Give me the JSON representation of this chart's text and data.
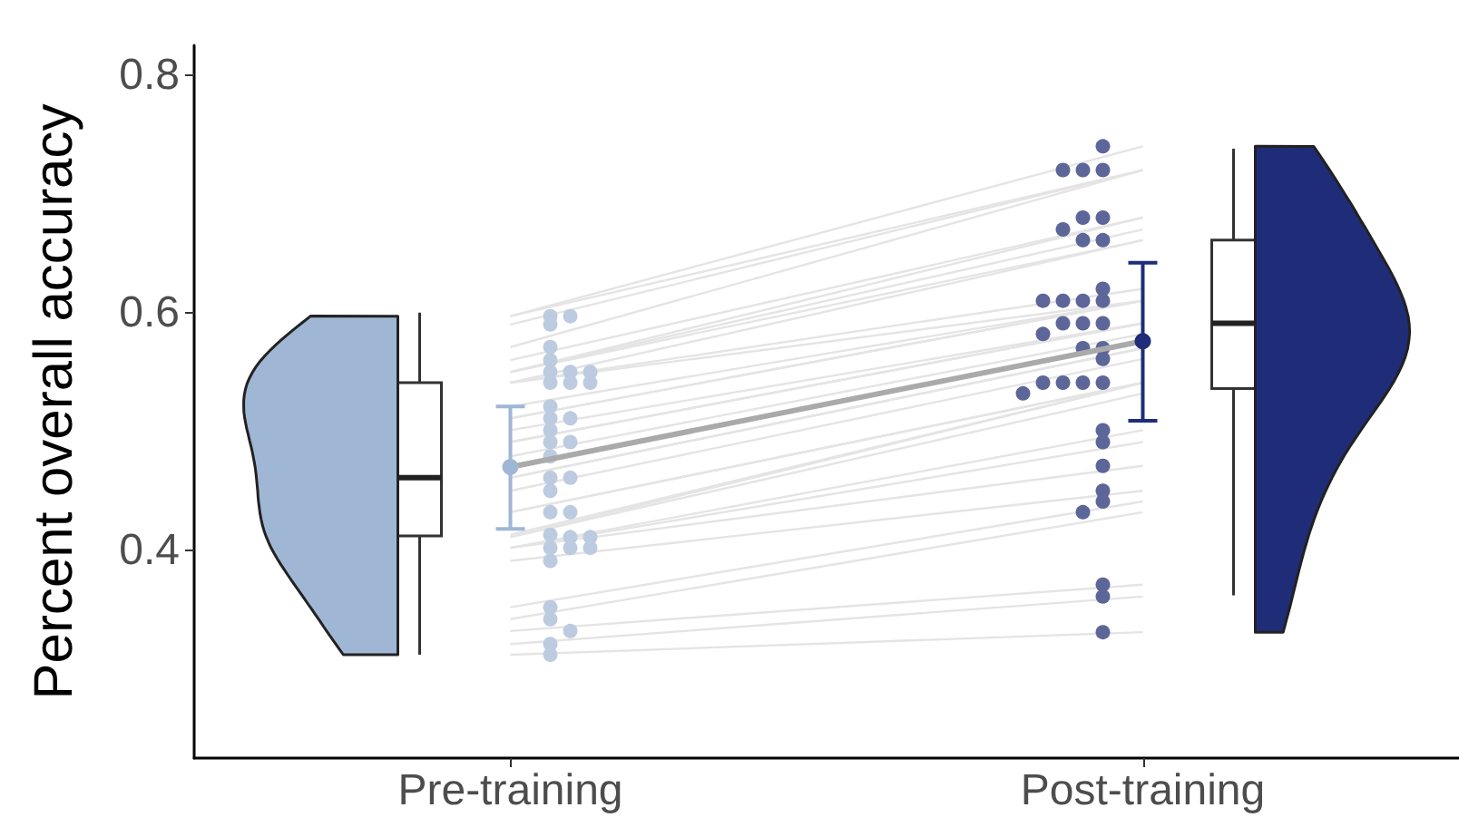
{
  "chart_data": {
    "type": "box",
    "ylabel": "Percent overall accuracy",
    "categories": [
      "Pre-training",
      "Post-training"
    ],
    "boxes": [
      {
        "low": 0.312,
        "q1": 0.412,
        "median": 0.461,
        "q3": 0.541,
        "high": 0.6
      },
      {
        "low": 0.362,
        "q1": 0.536,
        "median": 0.591,
        "q3": 0.661,
        "high": 0.738
      }
    ],
    "series": [
      {
        "type": "scatter",
        "marker": "circle",
        "color": "#bccbe0",
        "x": [
          "Pre-training",
          "Pre-training",
          "Pre-training",
          "Pre-training",
          "Pre-training",
          "Pre-training",
          "Pre-training",
          "Pre-training",
          "Pre-training",
          "Pre-training",
          "Pre-training",
          "Pre-training",
          "Pre-training",
          "Pre-training",
          "Pre-training",
          "Pre-training",
          "Pre-training",
          "Pre-training",
          "Pre-training",
          "Pre-training",
          "Pre-training",
          "Pre-training",
          "Pre-training",
          "Pre-training",
          "Pre-training",
          "Pre-training",
          "Pre-training",
          "Pre-training",
          "Pre-training",
          "Pre-training",
          "Pre-training",
          "Pre-training",
          "Pre-training",
          "Pre-training",
          "Pre-training"
        ],
        "values": [
          0.597,
          0.597,
          0.59,
          0.571,
          0.56,
          0.55,
          0.55,
          0.55,
          0.541,
          0.541,
          0.541,
          0.521,
          0.511,
          0.511,
          0.501,
          0.491,
          0.491,
          0.479,
          0.461,
          0.461,
          0.45,
          0.432,
          0.432,
          0.413,
          0.411,
          0.411,
          0.402,
          0.402,
          0.402,
          0.391,
          0.352,
          0.342,
          0.332,
          0.321,
          0.312
        ]
      },
      {
        "type": "scatter",
        "marker": "circle",
        "color": "#5c6698",
        "x": [
          "Post-training",
          "Post-training",
          "Post-training",
          "Post-training",
          "Post-training",
          "Post-training",
          "Post-training",
          "Post-training",
          "Post-training",
          "Post-training",
          "Post-training",
          "Post-training",
          "Post-training",
          "Post-training",
          "Post-training",
          "Post-training",
          "Post-training",
          "Post-training",
          "Post-training",
          "Post-training",
          "Post-training",
          "Post-training",
          "Post-training",
          "Post-training",
          "Post-training",
          "Post-training",
          "Post-training",
          "Post-training",
          "Post-training",
          "Post-training",
          "Post-training",
          "Post-training",
          "Post-training",
          "Post-training",
          "Post-training"
        ],
        "values": [
          0.74,
          0.72,
          0.72,
          0.72,
          0.68,
          0.68,
          0.67,
          0.661,
          0.661,
          0.62,
          0.61,
          0.61,
          0.61,
          0.61,
          0.591,
          0.591,
          0.591,
          0.582,
          0.57,
          0.57,
          0.561,
          0.541,
          0.541,
          0.541,
          0.541,
          0.532,
          0.501,
          0.491,
          0.471,
          0.45,
          0.441,
          0.432,
          0.371,
          0.361,
          0.331
        ]
      },
      {
        "type": "line",
        "color": "#e4e4e4",
        "x": [
          "Pre-training",
          "Post-training"
        ],
        "values": [
          0.597,
          0.74
        ]
      },
      {
        "type": "line",
        "color": "#e4e4e4",
        "x": [
          "Pre-training",
          "Post-training"
        ],
        "values": [
          0.597,
          0.72
        ]
      },
      {
        "type": "line",
        "color": "#e4e4e4",
        "x": [
          "Pre-training",
          "Post-training"
        ],
        "values": [
          0.59,
          0.72
        ]
      },
      {
        "type": "line",
        "color": "#e4e4e4",
        "x": [
          "Pre-training",
          "Post-training"
        ],
        "values": [
          0.571,
          0.72
        ]
      },
      {
        "type": "line",
        "color": "#e4e4e4",
        "x": [
          "Pre-training",
          "Post-training"
        ],
        "values": [
          0.56,
          0.68
        ]
      },
      {
        "type": "line",
        "color": "#e4e4e4",
        "x": [
          "Pre-training",
          "Post-training"
        ],
        "values": [
          0.55,
          0.68
        ]
      },
      {
        "type": "line",
        "color": "#e4e4e4",
        "x": [
          "Pre-training",
          "Post-training"
        ],
        "values": [
          0.55,
          0.67
        ]
      },
      {
        "type": "line",
        "color": "#e4e4e4",
        "x": [
          "Pre-training",
          "Post-training"
        ],
        "values": [
          0.55,
          0.661
        ]
      },
      {
        "type": "line",
        "color": "#e4e4e4",
        "x": [
          "Pre-training",
          "Post-training"
        ],
        "values": [
          0.541,
          0.661
        ]
      },
      {
        "type": "line",
        "color": "#e4e4e4",
        "x": [
          "Pre-training",
          "Post-training"
        ],
        "values": [
          0.541,
          0.62
        ]
      },
      {
        "type": "line",
        "color": "#e4e4e4",
        "x": [
          "Pre-training",
          "Post-training"
        ],
        "values": [
          0.541,
          0.61
        ]
      },
      {
        "type": "line",
        "color": "#e4e4e4",
        "x": [
          "Pre-training",
          "Post-training"
        ],
        "values": [
          0.521,
          0.61
        ]
      },
      {
        "type": "line",
        "color": "#e4e4e4",
        "x": [
          "Pre-training",
          "Post-training"
        ],
        "values": [
          0.511,
          0.61
        ]
      },
      {
        "type": "line",
        "color": "#e4e4e4",
        "x": [
          "Pre-training",
          "Post-training"
        ],
        "values": [
          0.511,
          0.61
        ]
      },
      {
        "type": "line",
        "color": "#e4e4e4",
        "x": [
          "Pre-training",
          "Post-training"
        ],
        "values": [
          0.501,
          0.591
        ]
      },
      {
        "type": "line",
        "color": "#e4e4e4",
        "x": [
          "Pre-training",
          "Post-training"
        ],
        "values": [
          0.491,
          0.591
        ]
      },
      {
        "type": "line",
        "color": "#e4e4e4",
        "x": [
          "Pre-training",
          "Post-training"
        ],
        "values": [
          0.491,
          0.591
        ]
      },
      {
        "type": "line",
        "color": "#e4e4e4",
        "x": [
          "Pre-training",
          "Post-training"
        ],
        "values": [
          0.479,
          0.582
        ]
      },
      {
        "type": "line",
        "color": "#e4e4e4",
        "x": [
          "Pre-training",
          "Post-training"
        ],
        "values": [
          0.461,
          0.57
        ]
      },
      {
        "type": "line",
        "color": "#e4e4e4",
        "x": [
          "Pre-training",
          "Post-training"
        ],
        "values": [
          0.461,
          0.57
        ]
      },
      {
        "type": "line",
        "color": "#e4e4e4",
        "x": [
          "Pre-training",
          "Post-training"
        ],
        "values": [
          0.45,
          0.561
        ]
      },
      {
        "type": "line",
        "color": "#e4e4e4",
        "x": [
          "Pre-training",
          "Post-training"
        ],
        "values": [
          0.432,
          0.541
        ]
      },
      {
        "type": "line",
        "color": "#e4e4e4",
        "x": [
          "Pre-training",
          "Post-training"
        ],
        "values": [
          0.432,
          0.541
        ]
      },
      {
        "type": "line",
        "color": "#e4e4e4",
        "x": [
          "Pre-training",
          "Post-training"
        ],
        "values": [
          0.413,
          0.541
        ]
      },
      {
        "type": "line",
        "color": "#e4e4e4",
        "x": [
          "Pre-training",
          "Post-training"
        ],
        "values": [
          0.411,
          0.541
        ]
      },
      {
        "type": "line",
        "color": "#e4e4e4",
        "x": [
          "Pre-training",
          "Post-training"
        ],
        "values": [
          0.411,
          0.532
        ]
      },
      {
        "type": "line",
        "color": "#e4e4e4",
        "x": [
          "Pre-training",
          "Post-training"
        ],
        "values": [
          0.402,
          0.501
        ]
      },
      {
        "type": "line",
        "color": "#e4e4e4",
        "x": [
          "Pre-training",
          "Post-training"
        ],
        "values": [
          0.402,
          0.491
        ]
      },
      {
        "type": "line",
        "color": "#e4e4e4",
        "x": [
          "Pre-training",
          "Post-training"
        ],
        "values": [
          0.402,
          0.471
        ]
      },
      {
        "type": "line",
        "color": "#e4e4e4",
        "x": [
          "Pre-training",
          "Post-training"
        ],
        "values": [
          0.391,
          0.45
        ]
      },
      {
        "type": "line",
        "color": "#e4e4e4",
        "x": [
          "Pre-training",
          "Post-training"
        ],
        "values": [
          0.352,
          0.441
        ]
      },
      {
        "type": "line",
        "color": "#e4e4e4",
        "x": [
          "Pre-training",
          "Post-training"
        ],
        "values": [
          0.342,
          0.432
        ]
      },
      {
        "type": "line",
        "color": "#e4e4e4",
        "x": [
          "Pre-training",
          "Post-training"
        ],
        "values": [
          0.332,
          0.371
        ]
      },
      {
        "type": "line",
        "color": "#e4e4e4",
        "x": [
          "Pre-training",
          "Post-training"
        ],
        "values": [
          0.321,
          0.361
        ]
      },
      {
        "type": "line",
        "color": "#e4e4e4",
        "x": [
          "Pre-training",
          "Post-training"
        ],
        "values": [
          0.312,
          0.331
        ]
      },
      {
        "type": "line",
        "marker": "circle",
        "color": "#aaaaaa",
        "colors": [
          "#a0b6d5",
          "#1f2d78"
        ],
        "x": [
          "Pre-training",
          "Post-training"
        ],
        "values": [
          0.47,
          0.576
        ],
        "errors": [
          [
            0.418,
            0.521
          ],
          [
            0.509,
            0.642
          ]
        ]
      }
    ],
    "ylim": [
      0.225,
      0.825
    ],
    "yticks": [
      0.4,
      0.6,
      0.8
    ],
    "grid": false
  }
}
